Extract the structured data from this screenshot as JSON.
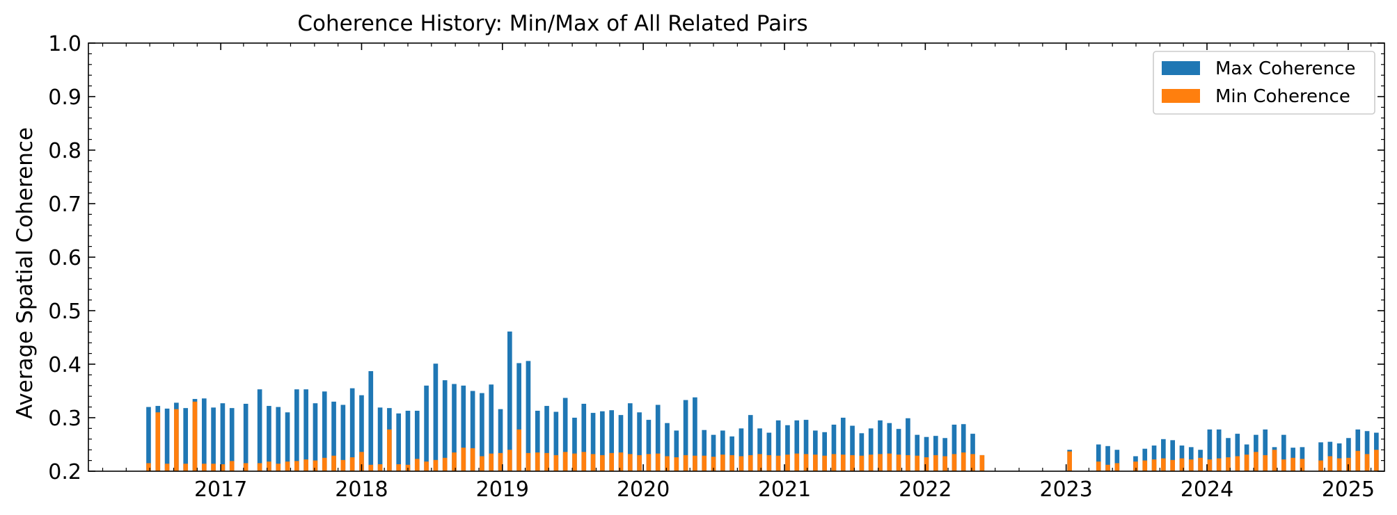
{
  "chart_data": {
    "type": "bar",
    "title": "Coherence History: Min/Max of All Related Pairs",
    "ylabel": "Average Spatial Coherence",
    "xlabel": "",
    "ylim": [
      0.2,
      1.0
    ],
    "xlim": [
      "2016-01-24",
      "2025-04-05"
    ],
    "yticks": [
      "0.2",
      "0.3",
      "0.4",
      "0.5",
      "0.6",
      "0.7",
      "0.8",
      "0.9",
      "1.0"
    ],
    "xticks": [
      "2017",
      "2018",
      "2019",
      "2020",
      "2021",
      "2022",
      "2023",
      "2024",
      "2025"
    ],
    "legend_position": "top-right",
    "grid": false,
    "series": [
      {
        "name": "Max Coherence",
        "color": "#1f77b4",
        "points": [
          [
            "2016-06-28",
            0.32
          ],
          [
            "2016-07-22",
            0.322
          ],
          [
            "2016-08-15",
            0.317
          ],
          [
            "2016-09-08",
            0.328
          ],
          [
            "2016-10-02",
            0.318
          ],
          [
            "2016-10-26",
            0.335
          ],
          [
            "2016-11-19",
            0.336
          ],
          [
            "2016-12-13",
            0.319
          ],
          [
            "2017-01-06",
            0.327
          ],
          [
            "2017-01-30",
            0.318
          ],
          [
            "2017-03-07",
            0.326
          ],
          [
            "2017-04-12",
            0.353
          ],
          [
            "2017-05-06",
            0.322
          ],
          [
            "2017-05-30",
            0.32
          ],
          [
            "2017-06-23",
            0.31
          ],
          [
            "2017-07-17",
            0.353
          ],
          [
            "2017-08-10",
            0.353
          ],
          [
            "2017-09-03",
            0.327
          ],
          [
            "2017-09-27",
            0.349
          ],
          [
            "2017-10-21",
            0.33
          ],
          [
            "2017-11-14",
            0.324
          ],
          [
            "2017-12-08",
            0.355
          ],
          [
            "2018-01-01",
            0.342
          ],
          [
            "2018-01-25",
            0.387
          ],
          [
            "2018-02-18",
            0.319
          ],
          [
            "2018-03-14",
            0.318
          ],
          [
            "2018-04-07",
            0.308
          ],
          [
            "2018-05-01",
            0.313
          ],
          [
            "2018-05-25",
            0.313
          ],
          [
            "2018-06-18",
            0.36
          ],
          [
            "2018-07-12",
            0.401
          ],
          [
            "2018-08-05",
            0.37
          ],
          [
            "2018-08-29",
            0.363
          ],
          [
            "2018-09-22",
            0.36
          ],
          [
            "2018-10-16",
            0.35
          ],
          [
            "2018-11-09",
            0.346
          ],
          [
            "2018-12-03",
            0.362
          ],
          [
            "2018-12-27",
            0.316
          ],
          [
            "2019-01-20",
            0.461
          ],
          [
            "2019-02-13",
            0.402
          ],
          [
            "2019-03-09",
            0.406
          ],
          [
            "2019-04-02",
            0.313
          ],
          [
            "2019-04-26",
            0.322
          ],
          [
            "2019-05-20",
            0.311
          ],
          [
            "2019-06-13",
            0.337
          ],
          [
            "2019-07-07",
            0.3
          ],
          [
            "2019-07-31",
            0.326
          ],
          [
            "2019-08-24",
            0.309
          ],
          [
            "2019-09-17",
            0.312
          ],
          [
            "2019-10-11",
            0.314
          ],
          [
            "2019-11-04",
            0.305
          ],
          [
            "2019-11-28",
            0.327
          ],
          [
            "2019-12-22",
            0.31
          ],
          [
            "2020-01-15",
            0.296
          ],
          [
            "2020-02-08",
            0.324
          ],
          [
            "2020-03-03",
            0.29
          ],
          [
            "2020-03-27",
            0.276
          ],
          [
            "2020-04-20",
            0.333
          ],
          [
            "2020-05-14",
            0.338
          ],
          [
            "2020-06-07",
            0.277
          ],
          [
            "2020-07-01",
            0.268
          ],
          [
            "2020-07-25",
            0.276
          ],
          [
            "2020-08-18",
            0.265
          ],
          [
            "2020-09-11",
            0.28
          ],
          [
            "2020-10-05",
            0.305
          ],
          [
            "2020-10-29",
            0.28
          ],
          [
            "2020-11-22",
            0.272
          ],
          [
            "2020-12-16",
            0.295
          ],
          [
            "2021-01-09",
            0.286
          ],
          [
            "2021-02-02",
            0.295
          ],
          [
            "2021-02-26",
            0.296
          ],
          [
            "2021-03-22",
            0.276
          ],
          [
            "2021-04-15",
            0.273
          ],
          [
            "2021-05-09",
            0.287
          ],
          [
            "2021-06-02",
            0.3
          ],
          [
            "2021-06-26",
            0.285
          ],
          [
            "2021-07-20",
            0.271
          ],
          [
            "2021-08-13",
            0.28
          ],
          [
            "2021-09-06",
            0.295
          ],
          [
            "2021-09-30",
            0.29
          ],
          [
            "2021-10-24",
            0.279
          ],
          [
            "2021-11-17",
            0.299
          ],
          [
            "2021-12-11",
            0.268
          ],
          [
            "2022-01-04",
            0.264
          ],
          [
            "2022-01-28",
            0.266
          ],
          [
            "2022-02-21",
            0.262
          ],
          [
            "2022-03-17",
            0.287
          ],
          [
            "2022-04-10",
            0.288
          ],
          [
            "2022-05-04",
            0.27
          ],
          [
            "2022-05-28",
            0.23
          ],
          [
            "2023-01-10",
            0.24
          ],
          [
            "2023-03-26",
            0.25
          ],
          [
            "2023-04-19",
            0.247
          ],
          [
            "2023-05-13",
            0.24
          ],
          [
            "2023-06-30",
            0.228
          ],
          [
            "2023-07-24",
            0.242
          ],
          [
            "2023-08-17",
            0.248
          ],
          [
            "2023-09-10",
            0.26
          ],
          [
            "2023-10-04",
            0.258
          ],
          [
            "2023-10-28",
            0.248
          ],
          [
            "2023-11-21",
            0.245
          ],
          [
            "2023-12-15",
            0.24
          ],
          [
            "2024-01-08",
            0.278
          ],
          [
            "2024-02-01",
            0.278
          ],
          [
            "2024-02-25",
            0.262
          ],
          [
            "2024-03-20",
            0.27
          ],
          [
            "2024-04-13",
            0.25
          ],
          [
            "2024-05-07",
            0.268
          ],
          [
            "2024-05-31",
            0.278
          ],
          [
            "2024-06-24",
            0.245
          ],
          [
            "2024-07-18",
            0.268
          ],
          [
            "2024-08-11",
            0.244
          ],
          [
            "2024-09-04",
            0.245
          ],
          [
            "2024-10-22",
            0.254
          ],
          [
            "2024-11-15",
            0.255
          ],
          [
            "2024-12-09",
            0.252
          ],
          [
            "2025-01-02",
            0.262
          ],
          [
            "2025-01-26",
            0.278
          ],
          [
            "2025-02-19",
            0.275
          ],
          [
            "2025-03-15",
            0.272
          ]
        ]
      },
      {
        "name": "Min Coherence",
        "color": "#ff7f0e",
        "points": [
          [
            "2016-06-28",
            0.215
          ],
          [
            "2016-07-22",
            0.31
          ],
          [
            "2016-08-15",
            0.214
          ],
          [
            "2016-09-08",
            0.316
          ],
          [
            "2016-10-02",
            0.214
          ],
          [
            "2016-10-26",
            0.33
          ],
          [
            "2016-11-19",
            0.214
          ],
          [
            "2016-12-13",
            0.214
          ],
          [
            "2017-01-06",
            0.213
          ],
          [
            "2017-01-30",
            0.219
          ],
          [
            "2017-03-07",
            0.215
          ],
          [
            "2017-04-12",
            0.215
          ],
          [
            "2017-05-06",
            0.218
          ],
          [
            "2017-05-30",
            0.214
          ],
          [
            "2017-06-23",
            0.218
          ],
          [
            "2017-07-17",
            0.219
          ],
          [
            "2017-08-10",
            0.222
          ],
          [
            "2017-09-03",
            0.22
          ],
          [
            "2017-09-27",
            0.225
          ],
          [
            "2017-10-21",
            0.229
          ],
          [
            "2017-11-14",
            0.221
          ],
          [
            "2017-12-08",
            0.226
          ],
          [
            "2018-01-01",
            0.236
          ],
          [
            "2018-01-25",
            0.212
          ],
          [
            "2018-02-18",
            0.213
          ],
          [
            "2018-03-14",
            0.278
          ],
          [
            "2018-04-07",
            0.213
          ],
          [
            "2018-05-01",
            0.212
          ],
          [
            "2018-05-25",
            0.223
          ],
          [
            "2018-06-18",
            0.218
          ],
          [
            "2018-07-12",
            0.221
          ],
          [
            "2018-08-05",
            0.225
          ],
          [
            "2018-08-29",
            0.235
          ],
          [
            "2018-09-22",
            0.244
          ],
          [
            "2018-10-16",
            0.243
          ],
          [
            "2018-11-09",
            0.228
          ],
          [
            "2018-12-03",
            0.233
          ],
          [
            "2018-12-27",
            0.234
          ],
          [
            "2019-01-20",
            0.24
          ],
          [
            "2019-02-13",
            0.278
          ],
          [
            "2019-03-09",
            0.234
          ],
          [
            "2019-04-02",
            0.235
          ],
          [
            "2019-04-26",
            0.234
          ],
          [
            "2019-05-20",
            0.23
          ],
          [
            "2019-06-13",
            0.236
          ],
          [
            "2019-07-07",
            0.233
          ],
          [
            "2019-07-31",
            0.236
          ],
          [
            "2019-08-24",
            0.232
          ],
          [
            "2019-09-17",
            0.23
          ],
          [
            "2019-10-11",
            0.234
          ],
          [
            "2019-11-04",
            0.235
          ],
          [
            "2019-11-28",
            0.232
          ],
          [
            "2019-12-22",
            0.23
          ],
          [
            "2020-01-15",
            0.232
          ],
          [
            "2020-02-08",
            0.233
          ],
          [
            "2020-03-03",
            0.228
          ],
          [
            "2020-03-27",
            0.226
          ],
          [
            "2020-04-20",
            0.23
          ],
          [
            "2020-05-14",
            0.229
          ],
          [
            "2020-06-07",
            0.229
          ],
          [
            "2020-07-01",
            0.227
          ],
          [
            "2020-07-25",
            0.231
          ],
          [
            "2020-08-18",
            0.23
          ],
          [
            "2020-09-11",
            0.228
          ],
          [
            "2020-10-05",
            0.23
          ],
          [
            "2020-10-29",
            0.232
          ],
          [
            "2020-11-22",
            0.23
          ],
          [
            "2020-12-16",
            0.229
          ],
          [
            "2021-01-09",
            0.231
          ],
          [
            "2021-02-02",
            0.233
          ],
          [
            "2021-02-26",
            0.232
          ],
          [
            "2021-03-22",
            0.231
          ],
          [
            "2021-04-15",
            0.229
          ],
          [
            "2021-05-09",
            0.232
          ],
          [
            "2021-06-02",
            0.231
          ],
          [
            "2021-06-26",
            0.23
          ],
          [
            "2021-07-20",
            0.229
          ],
          [
            "2021-08-13",
            0.231
          ],
          [
            "2021-09-06",
            0.232
          ],
          [
            "2021-09-30",
            0.233
          ],
          [
            "2021-10-24",
            0.231
          ],
          [
            "2021-11-17",
            0.23
          ],
          [
            "2021-12-11",
            0.229
          ],
          [
            "2022-01-04",
            0.226
          ],
          [
            "2022-01-28",
            0.23
          ],
          [
            "2022-02-21",
            0.228
          ],
          [
            "2022-03-17",
            0.232
          ],
          [
            "2022-04-10",
            0.235
          ],
          [
            "2022-05-04",
            0.232
          ],
          [
            "2022-05-28",
            0.23
          ],
          [
            "2023-01-10",
            0.237
          ],
          [
            "2023-03-26",
            0.218
          ],
          [
            "2023-04-19",
            0.212
          ],
          [
            "2023-05-13",
            0.215
          ],
          [
            "2023-06-30",
            0.218
          ],
          [
            "2023-07-24",
            0.22
          ],
          [
            "2023-08-17",
            0.222
          ],
          [
            "2023-09-10",
            0.224
          ],
          [
            "2023-10-04",
            0.221
          ],
          [
            "2023-10-28",
            0.224
          ],
          [
            "2023-11-21",
            0.222
          ],
          [
            "2023-12-15",
            0.225
          ],
          [
            "2024-01-08",
            0.222
          ],
          [
            "2024-02-01",
            0.224
          ],
          [
            "2024-02-25",
            0.226
          ],
          [
            "2024-03-20",
            0.228
          ],
          [
            "2024-04-13",
            0.231
          ],
          [
            "2024-05-07",
            0.236
          ],
          [
            "2024-05-31",
            0.23
          ],
          [
            "2024-06-24",
            0.24
          ],
          [
            "2024-07-18",
            0.222
          ],
          [
            "2024-08-11",
            0.225
          ],
          [
            "2024-09-04",
            0.223
          ],
          [
            "2024-10-22",
            0.22
          ],
          [
            "2024-11-15",
            0.228
          ],
          [
            "2024-12-09",
            0.224
          ],
          [
            "2025-01-02",
            0.225
          ],
          [
            "2025-01-26",
            0.238
          ],
          [
            "2025-02-19",
            0.232
          ],
          [
            "2025-03-15",
            0.24
          ]
        ]
      }
    ]
  }
}
